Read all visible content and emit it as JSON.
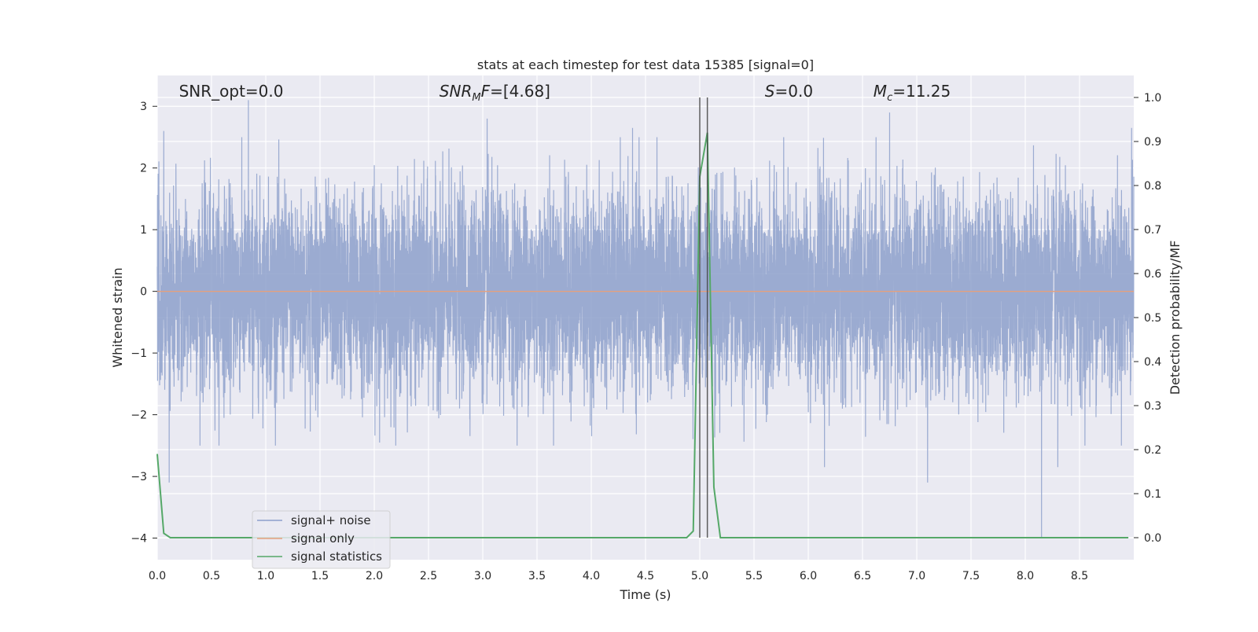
{
  "chart_data": {
    "type": "line",
    "title": "stats at each timestep for test data 15385 [signal=0]",
    "xlabel": "Time (s)",
    "ylabel_left": "Whitened strain",
    "ylabel_right": "Detection probability/MF",
    "xlim": [
      0.0,
      9.0
    ],
    "ylim_left": [
      -4.35,
      3.5
    ],
    "ylim_right": [
      -0.05,
      1.05
    ],
    "x_ticks": [
      "0.0",
      "0.5",
      "1.0",
      "1.5",
      "2.0",
      "2.5",
      "3.0",
      "3.5",
      "4.0",
      "4.5",
      "5.0",
      "5.5",
      "6.0",
      "6.5",
      "7.0",
      "7.5",
      "8.0",
      "8.5"
    ],
    "y_ticks_left": [
      "3",
      "2",
      "1",
      "0",
      "−1",
      "−2",
      "−3",
      "−4"
    ],
    "y_ticks_right": [
      "1.0",
      "0.9",
      "0.8",
      "0.7",
      "0.6",
      "0.5",
      "0.4",
      "0.3",
      "0.2",
      "0.1",
      "0.0"
    ],
    "grid": true,
    "legend_position": "lower-left",
    "annotations": [
      {
        "text": "SNR_opt=0.0",
        "x": 0.2
      },
      {
        "text": "SNR_MF=[4.68]",
        "x": 2.6
      },
      {
        "text": "S=0.0",
        "x": 5.6
      },
      {
        "text": "M_c=11.25",
        "x": 6.6
      }
    ],
    "vertical_lines_x": [
      5.0,
      5.07
    ],
    "series": [
      {
        "name": "signal+ noise",
        "color": "#8da0cb",
        "axis": "left",
        "description": "whitened strain noise, roughly Gaussian with unit variance, sampled densely over 0–9 s",
        "notable_peaks": [
          {
            "x": 0.84,
            "y": 3.1
          },
          {
            "x": 0.11,
            "y": -3.1
          },
          {
            "x": 0.06,
            "y": 2.6
          },
          {
            "x": 3.04,
            "y": 2.8
          },
          {
            "x": 4.38,
            "y": 2.65
          },
          {
            "x": 6.75,
            "y": 2.9
          },
          {
            "x": 8.15,
            "y": 2.7
          },
          {
            "x": 8.15,
            "y": -4.0
          },
          {
            "x": 8.3,
            "y": -2.85
          },
          {
            "x": 8.98,
            "y": 2.65
          },
          {
            "x": 7.1,
            "y": -3.1
          },
          {
            "x": 6.15,
            "y": -2.85
          }
        ]
      },
      {
        "name": "signal only",
        "color": "#e5a07d",
        "axis": "left",
        "x": [
          0.0,
          9.0
        ],
        "y": [
          0.0,
          0.0
        ]
      },
      {
        "name": "signal statistics",
        "color": "#55a868",
        "axis": "right",
        "x": [
          0.0,
          0.06,
          0.12,
          0.5,
          1.0,
          2.0,
          3.0,
          4.0,
          4.5,
          4.88,
          4.94,
          5.0,
          5.07,
          5.13,
          5.19,
          5.25,
          6.0,
          7.0,
          8.0,
          8.95
        ],
        "y": [
          0.19,
          0.01,
          0.0,
          0.0,
          0.0,
          0.0,
          0.0,
          0.0,
          0.0,
          0.0,
          0.015,
          0.82,
          0.92,
          0.115,
          0.0,
          0.0,
          0.0,
          0.0,
          0.0,
          0.0
        ]
      }
    ]
  }
}
